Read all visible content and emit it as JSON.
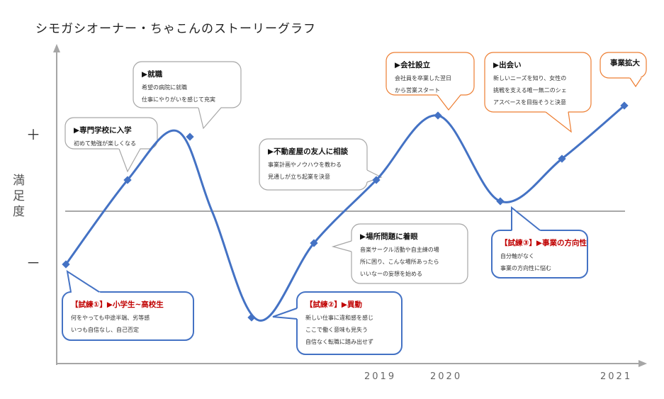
{
  "title": "シモガシオーナー・ちゃこんのストーリーグラフ",
  "axis": {
    "plus": "＋",
    "minus": "－",
    "ylabel": "満足度",
    "years": [
      "2019",
      "2020",
      "2021"
    ]
  },
  "colors": {
    "line": "#4472c4",
    "gray": "#a6a6a6",
    "orange": "#ed7d31",
    "blue": "#4472c4",
    "red": "#c00000"
  },
  "callouts": [
    {
      "title": "▶専門学校に入学",
      "lines": [
        "初めて勉強が楽しくなる"
      ]
    },
    {
      "title": "▶就職",
      "lines": [
        "希望の病院に就職",
        "仕事にやりがいを感じて充実"
      ]
    },
    {
      "title": "▶不動産屋の友人に相談",
      "lines": [
        "事業計画やノウハウを教わる",
        "見通しが立ち起業を決意"
      ]
    },
    {
      "title": "▶場所問題に着眼",
      "lines": [
        "音楽サークル活動や自主練の場",
        "所に困り、こんな場所あったら",
        "いいなーの妄想を始める"
      ]
    },
    {
      "title": "▶会社設立",
      "lines": [
        "会社員を卒業した翌日",
        "から営業スタート"
      ]
    },
    {
      "title": "▶出会い",
      "lines": [
        "新しいニーズを知り、女性の",
        "挑戦を支える唯一無二のシェ",
        "アスペースを目指そうと決意"
      ]
    },
    {
      "title": "事業拡大",
      "lines": []
    },
    {
      "title": "【試練①】▶小学生~高校生",
      "lines": [
        "何をやっても中途半端、劣等感",
        "いつも自信なし、自己否定"
      ]
    },
    {
      "title": "【試練②】▶異動",
      "lines": [
        "新しい仕事に違和感を感じ",
        "ここで働く意味も見失う",
        "自信なく転職に踏み出せず"
      ]
    },
    {
      "title": "【試練③】▶事業の方向性",
      "lines": [
        "自分軸がなく",
        "事業の方向性に悩む"
      ]
    }
  ]
}
